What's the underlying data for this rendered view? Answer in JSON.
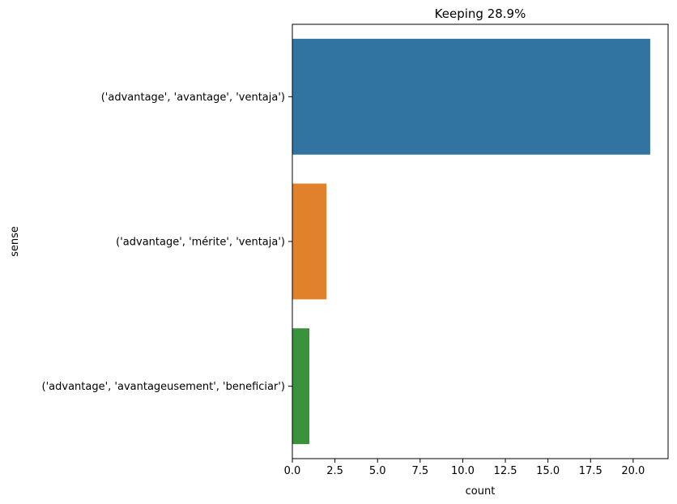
{
  "chart_data": {
    "type": "bar",
    "orientation": "horizontal",
    "title": "Keeping 28.9%",
    "xlabel": "count",
    "ylabel": "sense",
    "xlim": [
      0,
      22.05
    ],
    "xticks": [
      0.0,
      2.5,
      5.0,
      7.5,
      10.0,
      12.5,
      15.0,
      17.5,
      20.0
    ],
    "xtick_labels": [
      "0.0",
      "2.5",
      "5.0",
      "7.5",
      "10.0",
      "12.5",
      "15.0",
      "17.5",
      "20.0"
    ],
    "categories": [
      "('advantage', 'avantage', 'ventaja')",
      "('advantage', 'mérite', 'ventaja')",
      "('advantage', 'avantageusement', 'beneficiar')"
    ],
    "values": [
      21,
      2,
      1
    ],
    "colors": [
      "#3274a1",
      "#e1812c",
      "#3a923a"
    ],
    "grid": false,
    "legend": "none"
  }
}
